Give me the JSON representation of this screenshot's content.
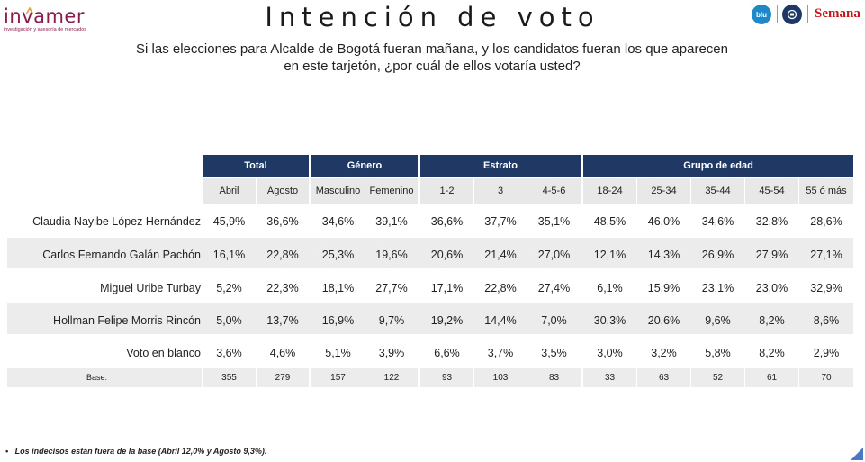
{
  "logo": {
    "name": "invamer",
    "tagline": "investigación y asesoría de mercados"
  },
  "title": "Intención de voto",
  "question": "Si las elecciones para Alcalde de Bogotá fueran mañana, y los candidatos fueran los que aparecen en este tarjetón, ¿por cuál de ellos votaría usted?",
  "partner_logos": {
    "badge1": "blu",
    "badge2": "",
    "brand": "Semana"
  },
  "colors": {
    "header_bg": "#1f3864",
    "row_bg": "#ececec",
    "brand": "#8a1d4d",
    "semana": "#c4161c"
  },
  "table": {
    "groups": [
      "Total",
      "Género",
      "Estrato",
      "Grupo de edad"
    ],
    "columns": [
      "Abril",
      "Agosto",
      "Masculino",
      "Femenino",
      "1-2",
      "3",
      "4-5-6",
      "18-24",
      "25-34",
      "35-44",
      "45-54",
      "55 ó más"
    ],
    "rows": [
      {
        "name": "Claudia Nayibe López Hernández",
        "values": [
          "45,9%",
          "36,6%",
          "34,6%",
          "39,1%",
          "36,6%",
          "37,7%",
          "35,1%",
          "48,5%",
          "46,0%",
          "34,6%",
          "32,8%",
          "28,6%"
        ]
      },
      {
        "name": "Carlos Fernando Galán Pachón",
        "values": [
          "16,1%",
          "22,8%",
          "25,3%",
          "19,6%",
          "20,6%",
          "21,4%",
          "27,0%",
          "12,1%",
          "14,3%",
          "26,9%",
          "27,9%",
          "27,1%"
        ]
      },
      {
        "name": "Miguel Uribe Turbay",
        "values": [
          "5,2%",
          "22,3%",
          "18,1%",
          "27,7%",
          "17,1%",
          "22,8%",
          "27,4%",
          "6,1%",
          "15,9%",
          "23,1%",
          "23,0%",
          "32,9%"
        ]
      },
      {
        "name": "Hollman Felipe Morris Rincón",
        "values": [
          "5,0%",
          "13,7%",
          "16,9%",
          "9,7%",
          "19,2%",
          "14,4%",
          "7,0%",
          "30,3%",
          "20,6%",
          "9,6%",
          "8,2%",
          "8,6%"
        ]
      },
      {
        "name": "Voto en blanco",
        "values": [
          "3,6%",
          "4,6%",
          "5,1%",
          "3,9%",
          "6,6%",
          "3,7%",
          "3,5%",
          "3,0%",
          "3,2%",
          "5,8%",
          "8,2%",
          "2,9%"
        ]
      }
    ],
    "base": {
      "label": "Base:",
      "values": [
        "355",
        "279",
        "157",
        "122",
        "93",
        "103",
        "83",
        "33",
        "63",
        "52",
        "61",
        "70"
      ]
    }
  },
  "footnote": "Los indecisos están fuera de la base (Abril 12,0% y Agosto 9,3%)."
}
